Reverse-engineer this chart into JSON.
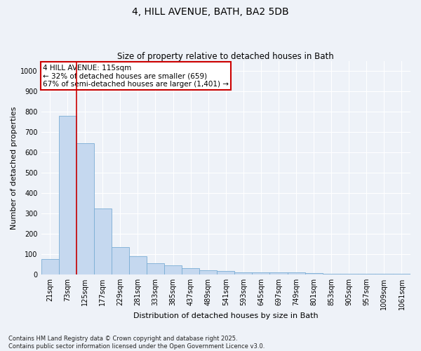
{
  "title1": "4, HILL AVENUE, BATH, BA2 5DB",
  "title2": "Size of property relative to detached houses in Bath",
  "xlabel": "Distribution of detached houses by size in Bath",
  "ylabel": "Number of detached properties",
  "bar_color": "#c5d8ef",
  "bar_edge_color": "#7aadd4",
  "categories": [
    "21sqm",
    "73sqm",
    "125sqm",
    "177sqm",
    "229sqm",
    "281sqm",
    "333sqm",
    "385sqm",
    "437sqm",
    "489sqm",
    "541sqm",
    "593sqm",
    "645sqm",
    "697sqm",
    "749sqm",
    "801sqm",
    "853sqm",
    "905sqm",
    "957sqm",
    "1009sqm",
    "1061sqm"
  ],
  "values": [
    75,
    780,
    645,
    325,
    135,
    90,
    55,
    45,
    30,
    20,
    15,
    10,
    10,
    10,
    8,
    5,
    3,
    2,
    1,
    1,
    1
  ],
  "ylim": [
    0,
    1050
  ],
  "yticks": [
    0,
    100,
    200,
    300,
    400,
    500,
    600,
    700,
    800,
    900,
    1000
  ],
  "vline_x": 1.5,
  "annotation_title": "4 HILL AVENUE: 115sqm",
  "annotation_line1": "← 32% of detached houses are smaller (659)",
  "annotation_line2": "67% of semi-detached houses are larger (1,401) →",
  "annotation_box_color": "#ffffff",
  "annotation_box_edge": "#cc0000",
  "vline_color": "#cc0000",
  "footnote1": "Contains HM Land Registry data © Crown copyright and database right 2025.",
  "footnote2": "Contains public sector information licensed under the Open Government Licence v3.0.",
  "bg_color": "#eef2f8",
  "grid_color": "#ffffff",
  "title1_fontsize": 10,
  "title2_fontsize": 8.5,
  "xlabel_fontsize": 8,
  "ylabel_fontsize": 8,
  "tick_fontsize": 7,
  "annot_fontsize": 7.5,
  "footnote_fontsize": 6
}
